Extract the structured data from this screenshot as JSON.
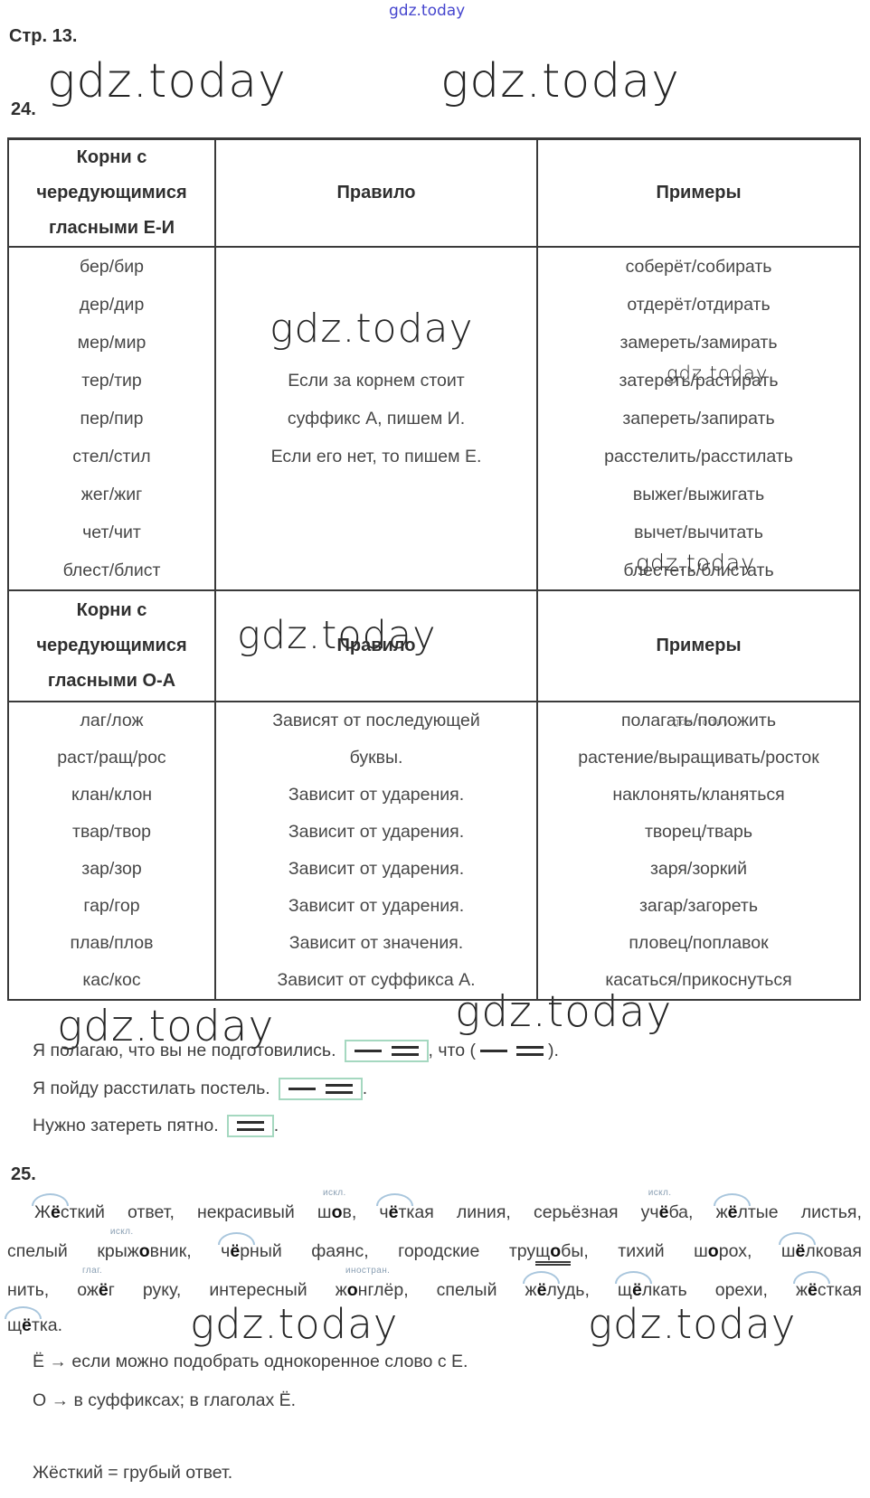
{
  "watermark": {
    "text": "gdz.today"
  },
  "page": {
    "title": "Стр. 13.",
    "ex24_label": "24.",
    "ex25_label": "25."
  },
  "table": {
    "sec1": {
      "header": [
        "Корни с чередующимися гласными Е-И",
        "Правило",
        "Примеры"
      ],
      "roots": [
        "бер/бир",
        "дер/дир",
        "мер/мир",
        "тер/тир",
        "пер/пир",
        "стел/стил",
        "жег/жиг",
        "чет/чит",
        "блест/блист"
      ],
      "rule": [
        "Если за корнем стоит",
        "суффикс А, пишем И.",
        "Если его нет, то пишем Е."
      ],
      "examples": [
        "соберёт/собирать",
        "отдерёт/отдирать",
        "замереть/замирать",
        "затереть/растирать",
        "запереть/запирать",
        "расстелить/расстилать",
        "выжег/выжигать",
        "вычет/вычитать",
        "блестеть/блистать"
      ]
    },
    "sec2": {
      "header": [
        "Корни с чередующимися гласными О-А",
        "Правило",
        "Примеры"
      ],
      "rows": [
        {
          "root": "лаг/лож",
          "rule": "Зависят от последующей",
          "example": "полагать/положить"
        },
        {
          "root": "раст/ращ/рос",
          "rule": "буквы.",
          "example": "растение/выращивать/росток"
        },
        {
          "root": "клан/клон",
          "rule": "Зависит от ударения.",
          "example": "наклонять/кланяться"
        },
        {
          "root": "твар/твор",
          "rule": "Зависит от ударения.",
          "example": "творец/тварь"
        },
        {
          "root": "зар/зор",
          "rule": "Зависит от ударения.",
          "example": "заря/зоркий"
        },
        {
          "root": "гар/гор",
          "rule": "Зависит от ударения.",
          "example": "загар/загореть"
        },
        {
          "root": "плав/плов",
          "rule": "Зависит от значения.",
          "example": "пловец/поплавок"
        },
        {
          "root": "кас/кос",
          "rule": "Зависит от суффикса А.",
          "example": "касаться/прикоснуться"
        }
      ]
    }
  },
  "sentences": [
    {
      "text": "Я полагаю, что вы не подготовились.",
      "box": [
        "dash",
        "pred"
      ],
      "tail": [
        {
          "t": ", что ("
        },
        {
          "sym": "dash"
        },
        {
          "sym": "pred"
        },
        {
          "t": ")."
        }
      ]
    },
    {
      "text": "Я пойду расстилать постель.",
      "box": [
        "dash",
        "pred"
      ],
      "tail": [
        {
          "t": "."
        }
      ]
    },
    {
      "text": "Нужно затереть пятно.",
      "box": [
        "pred"
      ],
      "tail": [
        {
          "t": "."
        }
      ]
    }
  ],
  "ex25": {
    "lines": [
      [
        {
          "arc": 1,
          "parts": [
            {
              "t": "Ж"
            },
            {
              "t": "ё",
              "b": 1
            },
            {
              "t": "сткий"
            }
          ]
        },
        {
          "parts": [
            {
              "t": "ответ,"
            }
          ]
        },
        {
          "parts": [
            {
              "t": "некрасивый"
            }
          ]
        },
        {
          "ann": "искл.",
          "parts": [
            {
              "t": "ш"
            },
            {
              "t": "о",
              "b": 1
            },
            {
              "t": "в,"
            }
          ]
        },
        {
          "arc": 1,
          "parts": [
            {
              "t": "ч"
            },
            {
              "t": "ё",
              "b": 1
            },
            {
              "t": "ткая"
            }
          ]
        },
        {
          "parts": [
            {
              "t": "линия,"
            }
          ]
        },
        {
          "parts": [
            {
              "t": "серьёзная"
            }
          ]
        },
        {
          "ann": "искл.",
          "parts": [
            {
              "t": "уч"
            },
            {
              "t": "ё",
              "b": 1
            },
            {
              "t": "ба,"
            }
          ]
        },
        {
          "arc": 1,
          "parts": [
            {
              "t": "ж"
            },
            {
              "t": "ё",
              "b": 1
            },
            {
              "t": "лтые"
            }
          ]
        },
        {
          "parts": [
            {
              "t": "листья,"
            }
          ]
        }
      ],
      [
        {
          "parts": [
            {
              "t": "спелый"
            }
          ]
        },
        {
          "ann": "искл.",
          "parts": [
            {
              "t": "крыж"
            },
            {
              "t": "о",
              "b": 1
            },
            {
              "t": "вник,"
            }
          ]
        },
        {
          "arc": 1,
          "parts": [
            {
              "t": "ч"
            },
            {
              "t": "ё",
              "b": 1
            },
            {
              "t": "рный"
            }
          ]
        },
        {
          "parts": [
            {
              "t": "фаянс,"
            }
          ]
        },
        {
          "parts": [
            {
              "t": "городские"
            }
          ]
        },
        {
          "parts": [
            {
              "t": "тру"
            },
            {
              "t": "щ",
              "u": 1
            },
            {
              "t": "о",
              "b": 1,
              "u": 1
            },
            {
              "t": "б",
              "u": 1
            },
            {
              "t": "ы,"
            }
          ]
        },
        {
          "parts": [
            {
              "t": "тихий"
            }
          ]
        },
        {
          "parts": [
            {
              "t": "ш"
            },
            {
              "t": "о",
              "b": 1
            },
            {
              "t": "рох,"
            }
          ]
        },
        {
          "arc": 1,
          "parts": [
            {
              "t": "ш"
            },
            {
              "t": "ё",
              "b": 1
            },
            {
              "t": "лковая"
            }
          ]
        }
      ],
      [
        {
          "parts": [
            {
              "t": "нить,"
            }
          ]
        },
        {
          "ann": "глаг.",
          "parts": [
            {
              "t": "ож"
            },
            {
              "t": "ё",
              "b": 1
            },
            {
              "t": "г"
            }
          ]
        },
        {
          "parts": [
            {
              "t": "руку,"
            }
          ]
        },
        {
          "parts": [
            {
              "t": "интересный"
            }
          ]
        },
        {
          "ann": "иностран.",
          "parts": [
            {
              "t": "ж"
            },
            {
              "t": "о",
              "b": 1
            },
            {
              "t": "нглёр,"
            }
          ]
        },
        {
          "parts": [
            {
              "t": "спелый"
            }
          ]
        },
        {
          "arc": 1,
          "parts": [
            {
              "t": "ж"
            },
            {
              "t": "ё",
              "b": 1
            },
            {
              "t": "лудь,"
            }
          ]
        },
        {
          "arc": 1,
          "parts": [
            {
              "t": "щ"
            },
            {
              "t": "ё",
              "b": 1
            },
            {
              "t": "лкать"
            }
          ]
        },
        {
          "parts": [
            {
              "t": "орехи,"
            }
          ]
        },
        {
          "arc": 1,
          "parts": [
            {
              "t": "ж"
            },
            {
              "t": "ё",
              "b": 1
            },
            {
              "t": "сткая"
            }
          ]
        }
      ],
      [
        {
          "arc": 1,
          "parts": [
            {
              "t": "щ"
            },
            {
              "t": "ё",
              "b": 1
            },
            {
              "t": "тка."
            }
          ]
        }
      ]
    ],
    "notes": [
      "Ё → если можно подобрать однокоренное слово с Е.",
      "О → в суффиксах; в глаголах Ё."
    ],
    "conclusion": "Жёсткий = грубый ответ."
  },
  "colors": {
    "arc": "#a9c6dd",
    "annotation": "#8a9fb3",
    "schema_box_border": "#a5d8c0",
    "watermark_blue": "#4646ce",
    "table_border": "#3a3a3a"
  }
}
